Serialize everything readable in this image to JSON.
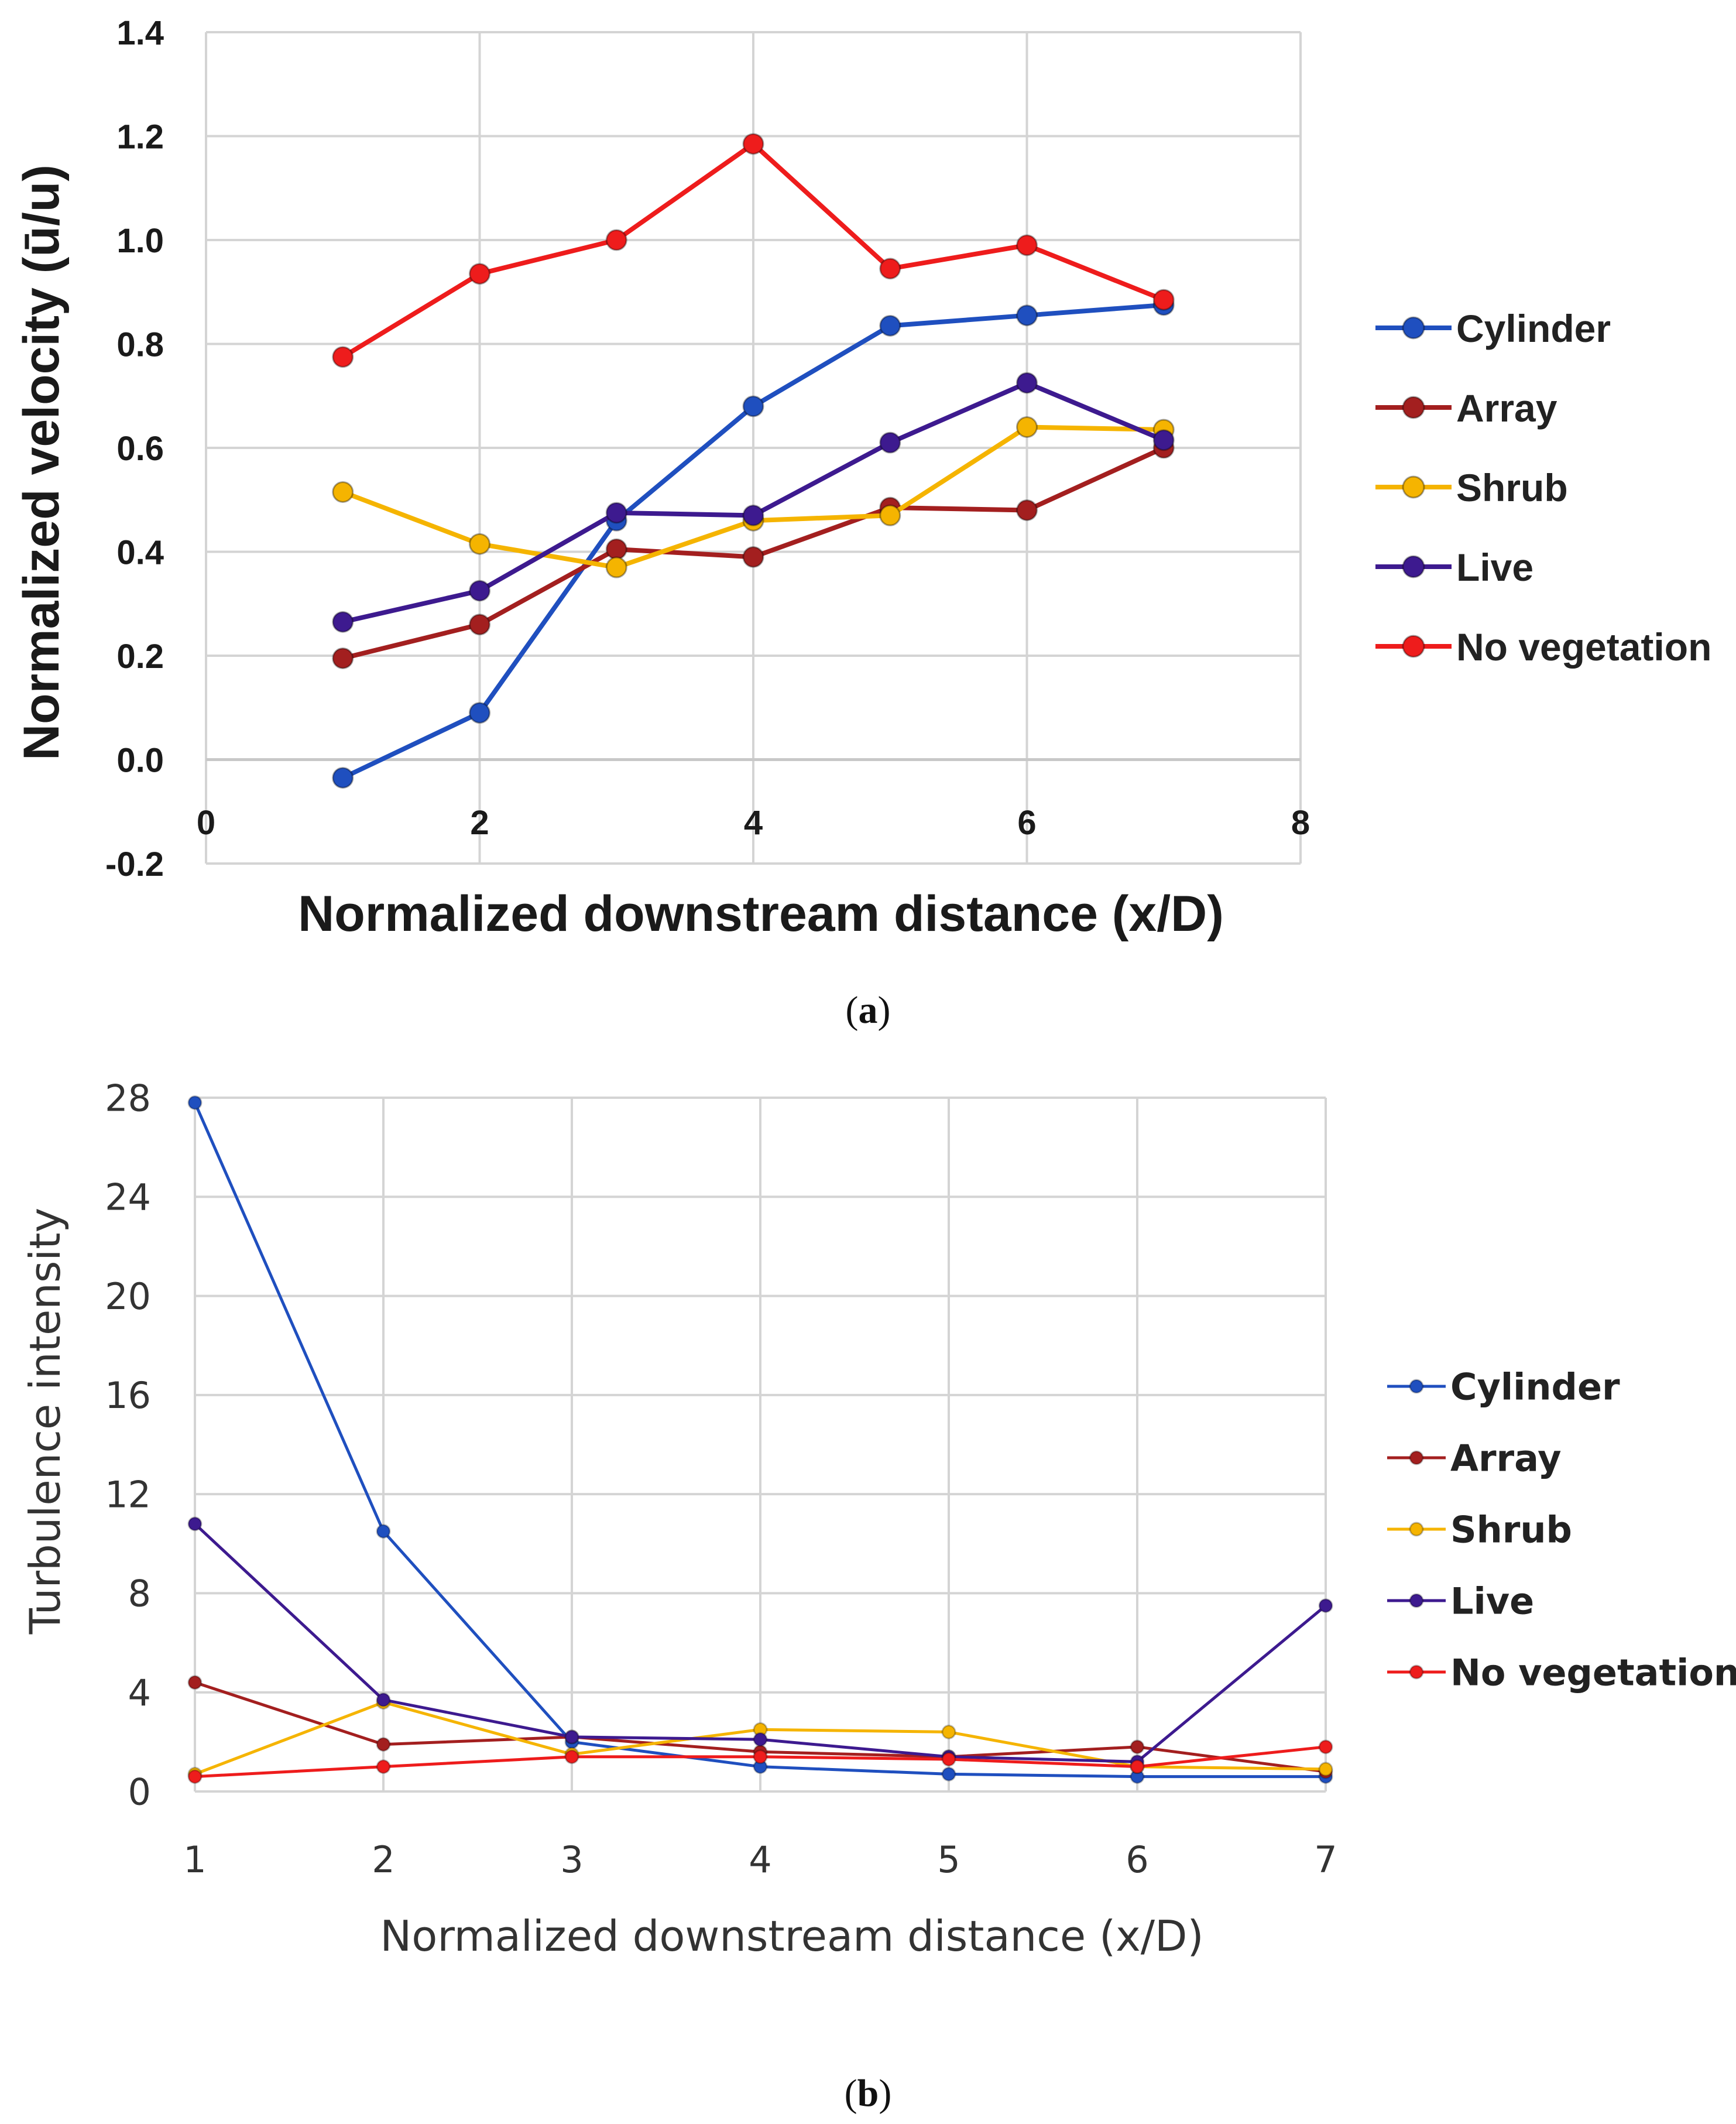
{
  "chart_data": [
    {
      "type": "line",
      "panel_label": "a",
      "title": "",
      "xlabel": "Normalized downstream distance (x/D)",
      "ylabel": "Normalized velocity (ū/u)",
      "xlim": [
        0,
        8
      ],
      "ylim": [
        -0.2,
        1.4
      ],
      "x_ticks": [
        "0",
        "2",
        "4",
        "6",
        "8"
      ],
      "y_ticks": [
        "-0.2",
        "0.0",
        "0.2",
        "0.4",
        "0.6",
        "0.8",
        "1.0",
        "1.2",
        "1.4"
      ],
      "grid": true,
      "legend_position": "right",
      "x": [
        1,
        2,
        3,
        4,
        5,
        6,
        7
      ],
      "series": [
        {
          "name": "Cylinder",
          "color": "#1f4fbf",
          "values": [
            -0.035,
            0.09,
            0.46,
            0.68,
            0.835,
            0.855,
            0.875
          ]
        },
        {
          "name": "Array",
          "color": "#a31f1f",
          "values": [
            0.195,
            0.26,
            0.405,
            0.39,
            0.485,
            0.48,
            0.6
          ]
        },
        {
          "name": "Shrub",
          "color": "#f5b400",
          "values": [
            0.515,
            0.415,
            0.37,
            0.46,
            0.47,
            0.64,
            0.635
          ]
        },
        {
          "name": "Live",
          "color": "#3d1a8f",
          "values": [
            0.265,
            0.325,
            0.475,
            0.47,
            0.61,
            0.725,
            0.615
          ]
        },
        {
          "name": "No vegetation",
          "color": "#ee1c1c",
          "values": [
            0.775,
            0.935,
            1.0,
            1.185,
            0.945,
            0.99,
            0.885
          ]
        }
      ]
    },
    {
      "type": "line",
      "panel_label": "b",
      "title": "",
      "xlabel": "Normalized downstream distance (x/D)",
      "ylabel": "Turbulence intensity",
      "xlim": [
        1,
        7
      ],
      "ylim": [
        0,
        28
      ],
      "x_ticks": [
        "1",
        "2",
        "3",
        "4",
        "5",
        "6",
        "7"
      ],
      "y_ticks": [
        "0",
        "4",
        "8",
        "12",
        "16",
        "20",
        "24",
        "28"
      ],
      "grid": true,
      "legend_position": "right",
      "x": [
        1,
        2,
        3,
        4,
        5,
        6,
        7
      ],
      "series": [
        {
          "name": "Cylinder",
          "color": "#1f4fbf",
          "values": [
            27.8,
            10.5,
            2.0,
            1.0,
            0.7,
            0.6,
            0.6
          ]
        },
        {
          "name": "Array",
          "color": "#a31f1f",
          "values": [
            4.4,
            1.9,
            2.2,
            1.6,
            1.4,
            1.8,
            0.8
          ]
        },
        {
          "name": "Shrub",
          "color": "#f5b400",
          "values": [
            0.7,
            3.6,
            1.5,
            2.5,
            2.4,
            1.0,
            0.9
          ]
        },
        {
          "name": "Live",
          "color": "#3d1a8f",
          "values": [
            10.8,
            3.7,
            2.2,
            2.1,
            1.4,
            1.2,
            7.5
          ]
        },
        {
          "name": "No vegetation",
          "color": "#ee1c1c",
          "values": [
            0.6,
            1.0,
            1.4,
            1.4,
            1.3,
            1.0,
            1.8
          ]
        }
      ]
    }
  ]
}
